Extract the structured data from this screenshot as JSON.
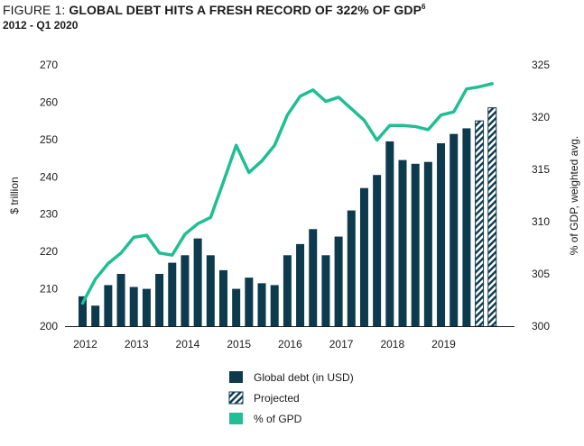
{
  "header": {
    "figure_label": "FIGURE 1: ",
    "title": "GLOBAL DEBT HITS A FRESH RECORD OF 322% OF GDP",
    "footnote": "6",
    "subtitle": "2012 - Q1 2020"
  },
  "colors": {
    "bar": "#0d3a4d",
    "line": "#1fbf93",
    "axis": "#1a1a1a"
  },
  "chart_data": {
    "type": "bar+line",
    "x_tick_labels": [
      "2012",
      "2013",
      "2014",
      "2015",
      "2016",
      "2017",
      "2018",
      "2019"
    ],
    "ylabel_left": "$ trillion",
    "ylabel_right": "% of GDP, weighted avg.",
    "ylim_left": [
      200,
      270
    ],
    "yticks_left": [
      200,
      210,
      220,
      230,
      240,
      250,
      260,
      270
    ],
    "ylim_right": [
      300,
      325
    ],
    "yticks_right": [
      300,
      305,
      310,
      315,
      320,
      325
    ],
    "series": [
      {
        "name": "Global debt (in USD)",
        "kind": "bar",
        "axis": "left",
        "values": [
          208,
          205.5,
          211,
          214,
          210.5,
          210,
          214,
          217,
          219,
          223.5,
          219,
          215,
          210,
          213,
          211.5,
          211,
          219,
          222,
          226,
          219,
          224,
          231,
          237,
          240.5,
          249.5,
          244.5,
          243.5,
          244,
          249,
          251.5,
          253,
          255,
          258.5
        ],
        "projected": [
          false,
          false,
          false,
          false,
          false,
          false,
          false,
          false,
          false,
          false,
          false,
          false,
          false,
          false,
          false,
          false,
          false,
          false,
          false,
          false,
          false,
          false,
          false,
          false,
          false,
          false,
          false,
          false,
          false,
          false,
          false,
          true,
          true
        ]
      },
      {
        "name": "% of GPD",
        "kind": "line",
        "axis": "right",
        "values": [
          302.2,
          304.5,
          306,
          307,
          308.5,
          308.7,
          307,
          306.8,
          308.8,
          309.8,
          310.4,
          313.8,
          317.3,
          314.7,
          315.8,
          317.3,
          320.2,
          322,
          322.6,
          321.5,
          321.9,
          320.8,
          319.7,
          317.8,
          319.2,
          319.2,
          319.1,
          318.8,
          320.2,
          320.5,
          322.7,
          322.9,
          323.2
        ]
      }
    ],
    "legend": [
      {
        "label": "Global debt (in USD)",
        "swatch": "solid"
      },
      {
        "label": "Projected",
        "swatch": "hatched"
      },
      {
        "label": "% of GPD",
        "swatch": "line-color"
      }
    ]
  }
}
